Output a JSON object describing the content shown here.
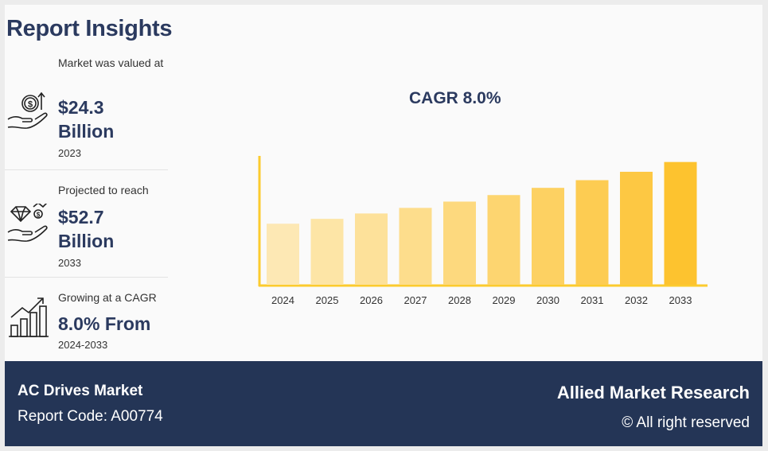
{
  "title": "Report Insights",
  "stats": [
    {
      "label": "Market was valued at",
      "value": "$24.3",
      "unit": "Billion",
      "year": "2023",
      "icon": "money-hand-icon"
    },
    {
      "label": "Projected to reach",
      "value": "$52.7",
      "unit": "Billion",
      "year": "2033",
      "icon": "diamond-hand-icon"
    },
    {
      "label": "Growing at a CAGR",
      "value": "8.0% From",
      "unit": "",
      "year": "2024-2033",
      "icon": "growth-chart-icon"
    }
  ],
  "chart_data": {
    "type": "bar",
    "title": "CAGR 8.0%",
    "categories": [
      "2024",
      "2025",
      "2026",
      "2027",
      "2028",
      "2029",
      "2030",
      "2031",
      "2032",
      "2033"
    ],
    "values": [
      26.2,
      28.3,
      30.6,
      33.0,
      35.7,
      38.5,
      41.6,
      44.9,
      48.5,
      52.7
    ],
    "colors": [
      "#fde8b4",
      "#fde5a6",
      "#fde19a",
      "#fddd8c",
      "#fdd97e",
      "#fdd570",
      "#fdd162",
      "#fdcc52",
      "#fdc843",
      "#fdc32f"
    ],
    "axis_color": "#fccb2e",
    "ylim": [
      0,
      56
    ],
    "xlabel": "",
    "ylabel": ""
  },
  "footer": {
    "market": "AC Drives Market",
    "code": "Report Code: A00774",
    "brand": "Allied Market Research",
    "rights": "© All right reserved"
  }
}
